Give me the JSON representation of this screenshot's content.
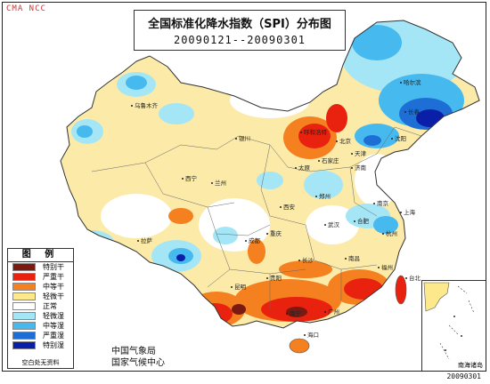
{
  "watermark": "CMA NCC",
  "title": {
    "main": "全国标准化降水指数（SPI）分布图",
    "period": "20090121--20090301"
  },
  "legend": {
    "title": "图 例",
    "items": [
      {
        "label": "特别干",
        "color": "#7a1a10"
      },
      {
        "label": "严重干",
        "color": "#e8220e"
      },
      {
        "label": "中等干",
        "color": "#f5801f"
      },
      {
        "label": "轻微干",
        "color": "#fde98c"
      },
      {
        "label": "正常",
        "color": "#ffffff"
      },
      {
        "label": "轻微湿",
        "color": "#a4e6f5"
      },
      {
        "label": "中等湿",
        "color": "#46b9ee"
      },
      {
        "label": "严重湿",
        "color": "#1d6fd6"
      },
      {
        "label": "特别湿",
        "color": "#0a1fa8"
      }
    ],
    "note": "空白处无资料"
  },
  "agency": [
    "中国气象局",
    "国家气候中心"
  ],
  "inset_label": "南海诸岛",
  "date_stamp": "20090301",
  "cities": [
    "乌鲁木齐",
    "哈尔滨",
    "呼和浩特",
    "银川",
    "兰州",
    "西宁",
    "拉萨",
    "成都",
    "重庆",
    "贵阳",
    "昆明",
    "南宁",
    "广州",
    "长沙",
    "武汉",
    "郑州",
    "西安",
    "济南",
    "北京",
    "天津",
    "沈阳",
    "长春",
    "太原",
    "石家庄",
    "南京",
    "上海",
    "杭州",
    "合肥",
    "南昌",
    "福州",
    "台北",
    "海口"
  ]
}
